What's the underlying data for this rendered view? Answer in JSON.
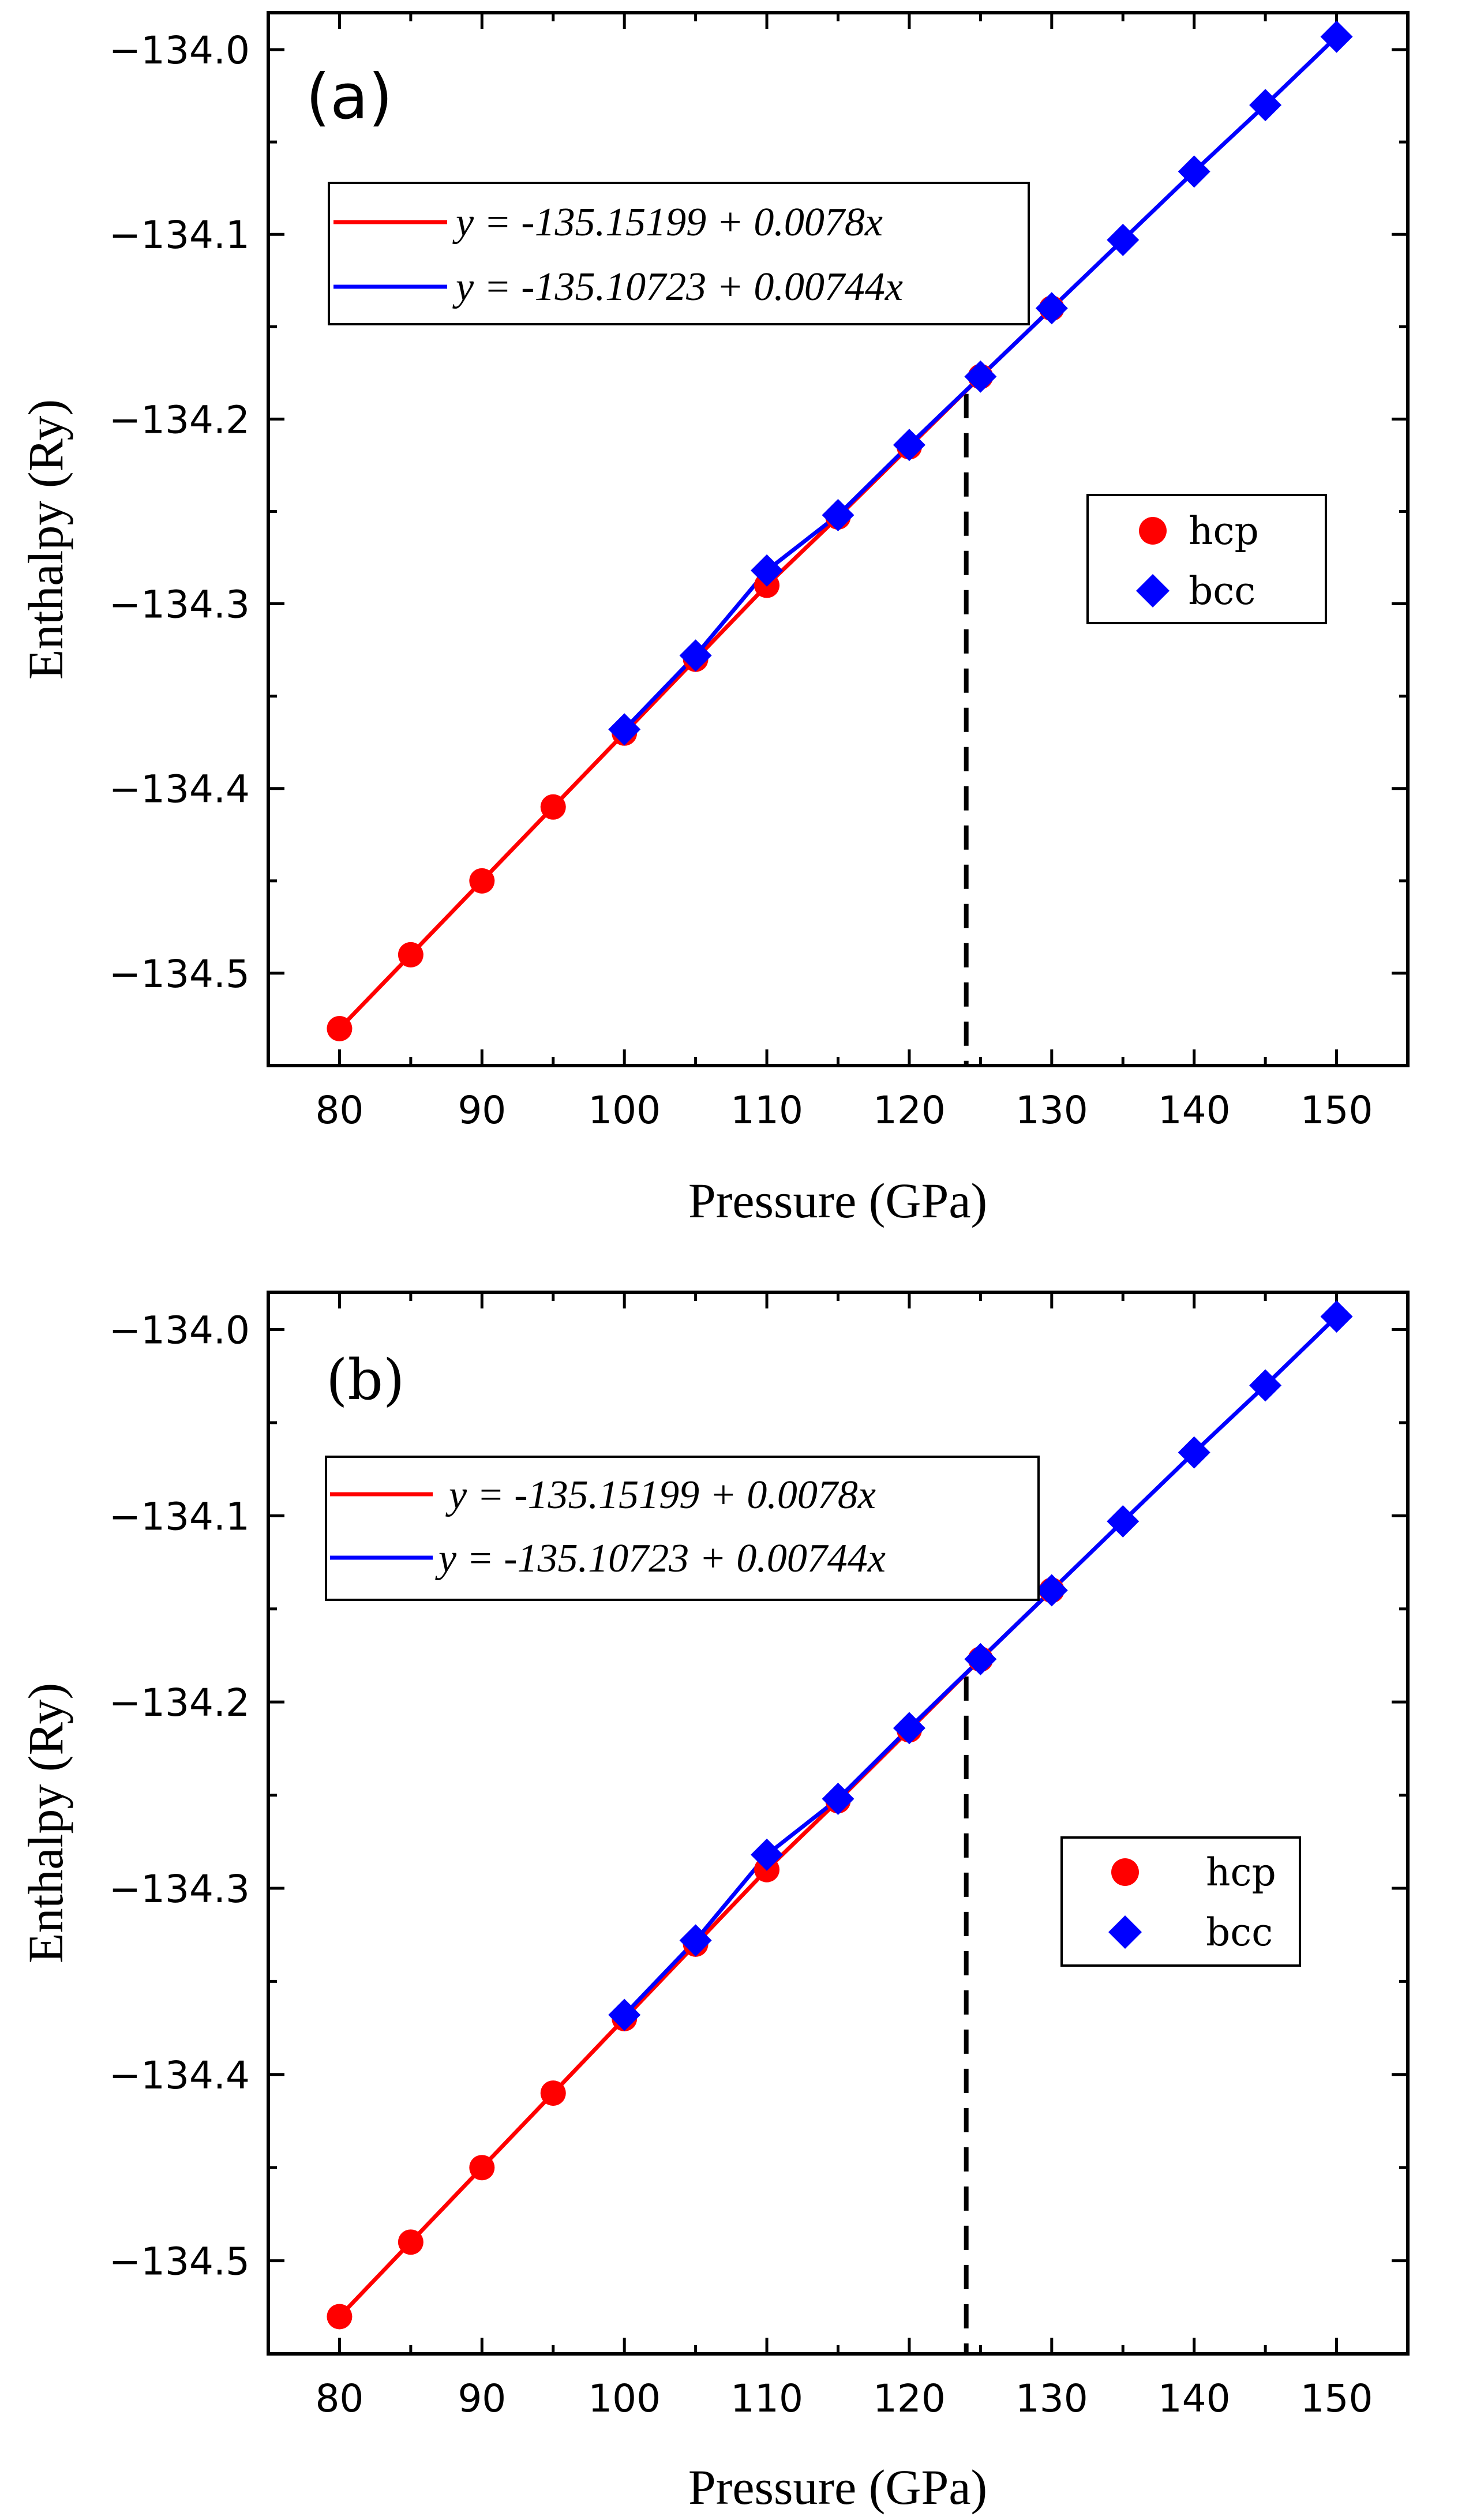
{
  "colors": {
    "hcp": "#ff0000",
    "bcc": "#0000ff",
    "axis": "#000000",
    "dashed": "#000000",
    "background": "#ffffff"
  },
  "chart_data": [
    {
      "type": "line",
      "panel_label": "(a)",
      "xlabel": "Pressure (GPa)",
      "ylabel": "Enthalpy (Ry)",
      "xlim": [
        75,
        155
      ],
      "ylim": [
        -134.55,
        -133.98
      ],
      "xticks": [
        80,
        90,
        100,
        110,
        120,
        130,
        140,
        150
      ],
      "yticks": [
        -134.5,
        -134.4,
        -134.3,
        -134.2,
        -134.1,
        -134.0
      ],
      "ytick_labels": [
        "−134.5",
        "−134.4",
        "−134.3",
        "−134.2",
        "−134.1",
        "−134.0"
      ],
      "transition_pressure": 124,
      "series": [
        {
          "name": "hcp",
          "marker": "circle",
          "color": "#ff0000",
          "x": [
            80,
            85,
            90,
            95,
            100,
            105,
            110,
            115,
            120,
            125,
            130
          ],
          "y": [
            -134.53,
            -134.49,
            -134.45,
            -134.41,
            -134.37,
            -134.33,
            -134.29,
            -134.253,
            -134.215,
            -134.177,
            -134.14
          ]
        },
        {
          "name": "bcc",
          "marker": "diamond",
          "color": "#0000ff",
          "x": [
            100,
            105,
            110,
            115,
            120,
            125,
            130,
            135,
            140,
            145,
            150
          ],
          "y": [
            -134.368,
            -134.328,
            -134.282,
            -134.252,
            -134.214,
            -134.177,
            -134.14,
            -134.103,
            -134.066,
            -134.03,
            -133.993
          ]
        }
      ],
      "fits": [
        {
          "label": "y = -135.15199 + 0.0078x",
          "color": "#ff0000",
          "intercept": -135.15199,
          "slope": 0.0078,
          "x_range": [
            80,
            130
          ]
        },
        {
          "label": "y = -135.10723 + 0.00744x",
          "color": "#0000ff",
          "intercept": -135.10723,
          "slope": 0.00744,
          "x_range": [
            100,
            150
          ]
        }
      ],
      "legend": [
        {
          "label": "hcp",
          "marker": "circle",
          "color": "#ff0000"
        },
        {
          "label": "bcc",
          "marker": "diamond",
          "color": "#0000ff"
        }
      ]
    },
    {
      "type": "line",
      "panel_label": "(b)",
      "xlabel": "Pressure (GPa)",
      "ylabel": "Enthalpy (Ry)",
      "xlim": [
        75,
        155
      ],
      "ylim": [
        -134.55,
        -133.98
      ],
      "xticks": [
        80,
        90,
        100,
        110,
        120,
        130,
        140,
        150
      ],
      "yticks": [
        -134.5,
        -134.4,
        -134.3,
        -134.2,
        -134.1,
        -134.0
      ],
      "ytick_labels": [
        "−134.5",
        "−134.4",
        "−134.3",
        "−134.2",
        "−134.1",
        "−134.0"
      ],
      "transition_pressure": 124,
      "series": [
        {
          "name": "hcp",
          "marker": "circle",
          "color": "#ff0000",
          "x": [
            80,
            85,
            90,
            95,
            100,
            105,
            110,
            115,
            120,
            125,
            130
          ],
          "y": [
            -134.53,
            -134.49,
            -134.45,
            -134.41,
            -134.37,
            -134.33,
            -134.29,
            -134.253,
            -134.215,
            -134.177,
            -134.14
          ]
        },
        {
          "name": "bcc",
          "marker": "diamond",
          "color": "#0000ff",
          "x": [
            100,
            105,
            110,
            115,
            120,
            125,
            130,
            135,
            140,
            145,
            150
          ],
          "y": [
            -134.368,
            -134.328,
            -134.282,
            -134.252,
            -134.214,
            -134.177,
            -134.14,
            -134.103,
            -134.066,
            -134.03,
            -133.993
          ]
        }
      ],
      "fits": [
        {
          "label": "y = -135.15199 + 0.0078x",
          "color": "#ff0000",
          "intercept": -135.15199,
          "slope": 0.0078,
          "x_range": [
            80,
            130
          ]
        },
        {
          "label": "y = -135.10723 + 0.00744x",
          "color": "#0000ff",
          "intercept": -135.10723,
          "slope": 0.00744,
          "x_range": [
            100,
            150
          ]
        }
      ],
      "legend": [
        {
          "label": "hcp",
          "marker": "circle",
          "color": "#ff0000"
        },
        {
          "label": "bcc",
          "marker": "diamond",
          "color": "#0000ff"
        }
      ]
    }
  ]
}
